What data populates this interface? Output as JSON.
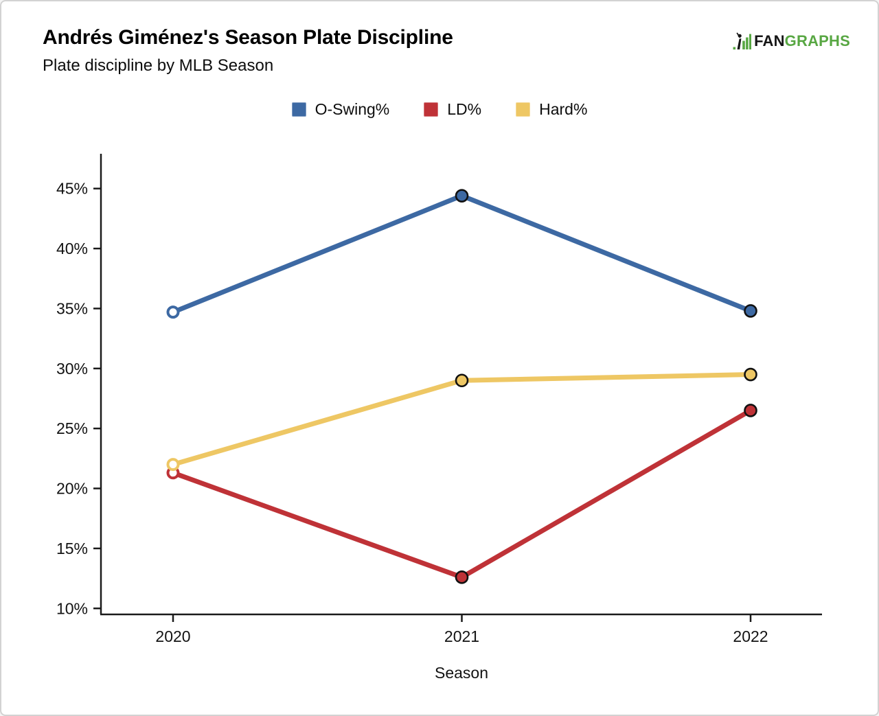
{
  "header": {
    "title": "Andrés Giménez's Season Plate Discipline",
    "subtitle": "Plate discipline by MLB Season",
    "logo": {
      "fan_text": "FAN",
      "graphs_text": "GRAPHS",
      "green_color": "#58a743",
      "black_color": "#151515"
    }
  },
  "chart_data": {
    "type": "line",
    "x": [
      "2020",
      "2021",
      "2022"
    ],
    "xlabel": "Season",
    "ylabel": "",
    "y_ticks": [
      10,
      15,
      20,
      25,
      30,
      35,
      40,
      45
    ],
    "y_tick_format": "{}%",
    "ylim": [
      9.5,
      47.9
    ],
    "grid": "off",
    "legend_position": "top-center",
    "legend_entries": [
      "O-Swing%",
      "LD%",
      "Hard%"
    ],
    "series": [
      {
        "name": "O-Swing%",
        "color": "#3d69a3",
        "values": [
          34.7,
          44.4,
          34.8
        ]
      },
      {
        "name": "LD%",
        "color": "#bf3237",
        "values": [
          21.3,
          12.6,
          26.5
        ]
      },
      {
        "name": "Hard%",
        "color": "#eec764",
        "values": [
          22.0,
          29.0,
          29.5
        ]
      }
    ],
    "marker_style": {
      "first_point": "open-white-fill",
      "other_points": "filled-black-outline"
    }
  }
}
